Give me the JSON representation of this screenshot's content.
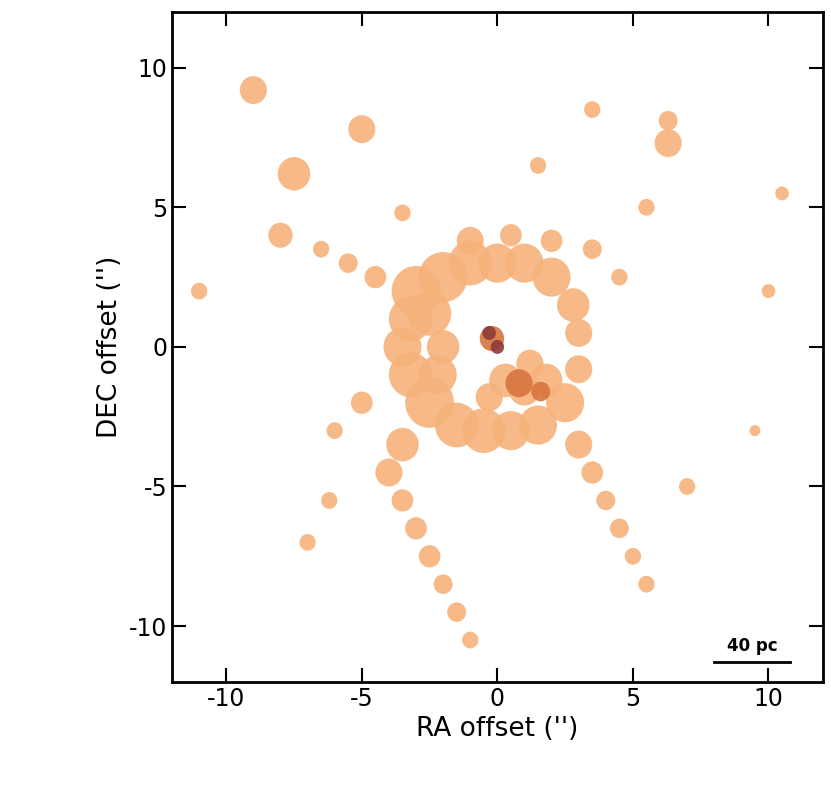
{
  "chart_data": {
    "type": "image",
    "xlabel": "RA offset ('')",
    "ylabel": "DEC offset ('')",
    "xlim": [
      -12,
      12
    ],
    "ylim": [
      -12,
      12
    ],
    "xticks": [
      -10,
      -5,
      0,
      5,
      10
    ],
    "yticks": [
      -10,
      -5,
      0,
      5,
      10
    ],
    "scale_bar": {
      "label": "40 pc",
      "length": 2.8
    },
    "series": [
      {
        "color": "#f5b27a",
        "clumps": [
          [
            -3,
            2,
            0.9
          ],
          [
            -2,
            2.5,
            0.9
          ],
          [
            -1,
            3,
            0.8
          ],
          [
            0,
            3,
            0.7
          ],
          [
            1,
            3,
            0.7
          ],
          [
            2,
            2.5,
            0.7
          ],
          [
            2.8,
            1.5,
            0.6
          ],
          [
            3,
            0.5,
            0.5
          ],
          [
            3,
            -0.8,
            0.5
          ],
          [
            2.5,
            -2,
            0.7
          ],
          [
            1.5,
            -2.8,
            0.7
          ],
          [
            0.5,
            -3,
            0.7
          ],
          [
            -0.5,
            -3,
            0.8
          ],
          [
            -1.5,
            -2.8,
            0.8
          ],
          [
            -2.5,
            -2,
            0.9
          ],
          [
            -3.2,
            -1,
            0.8
          ],
          [
            -3.5,
            0,
            0.7
          ],
          [
            -3.2,
            1,
            0.8
          ],
          [
            -2.5,
            1.2,
            0.8
          ],
          [
            -2,
            0,
            0.6
          ],
          [
            -2.2,
            -1,
            0.7
          ],
          [
            0.3,
            -1.2,
            0.6
          ],
          [
            1,
            -1.5,
            0.6
          ],
          [
            1.8,
            -1.2,
            0.6
          ],
          [
            1.2,
            -0.6,
            0.5
          ],
          [
            -0.3,
            -1.8,
            0.5
          ],
          [
            -3.5,
            -3.5,
            0.6
          ],
          [
            -4,
            -4.5,
            0.5
          ],
          [
            -3.5,
            -5.5,
            0.4
          ],
          [
            -3,
            -6.5,
            0.4
          ],
          [
            -2.5,
            -7.5,
            0.4
          ],
          [
            -2,
            -8.5,
            0.35
          ],
          [
            -1.5,
            -9.5,
            0.35
          ],
          [
            -1,
            -10.5,
            0.3
          ],
          [
            3,
            -3.5,
            0.5
          ],
          [
            3.5,
            -4.5,
            0.4
          ],
          [
            4,
            -5.5,
            0.35
          ],
          [
            4.5,
            -6.5,
            0.35
          ],
          [
            5,
            -7.5,
            0.3
          ],
          [
            5.5,
            -8.5,
            0.3
          ],
          [
            -1,
            3.8,
            0.5
          ],
          [
            0.5,
            4,
            0.4
          ],
          [
            2,
            3.8,
            0.4
          ],
          [
            3.5,
            3.5,
            0.35
          ],
          [
            4.5,
            2.5,
            0.3
          ],
          [
            -4.5,
            2.5,
            0.4
          ],
          [
            -5.5,
            3,
            0.35
          ],
          [
            -6.5,
            3.5,
            0.3
          ],
          [
            -5,
            -2,
            0.4
          ],
          [
            -6,
            -3,
            0.3
          ],
          [
            -6.2,
            -5.5,
            0.3
          ],
          [
            -9,
            9.2,
            0.5
          ],
          [
            -5,
            7.8,
            0.5
          ],
          [
            -7.5,
            6.2,
            0.6
          ],
          [
            -8,
            4,
            0.45
          ],
          [
            6.3,
            7.3,
            0.5
          ],
          [
            6.3,
            8.1,
            0.35
          ],
          [
            -11,
            2,
            0.3
          ],
          [
            5.5,
            5,
            0.3
          ],
          [
            3.5,
            8.5,
            0.3
          ],
          [
            1.5,
            6.5,
            0.3
          ],
          [
            10,
            2,
            0.25
          ],
          [
            10.5,
            5.5,
            0.25
          ],
          [
            -3.5,
            4.8,
            0.3
          ],
          [
            -7,
            -7,
            0.3
          ],
          [
            7,
            -5,
            0.3
          ],
          [
            9.5,
            -3,
            0.2
          ]
        ]
      },
      {
        "color": "#d8743f",
        "clumps": [
          [
            0.8,
            -1.3,
            0.5
          ],
          [
            1.6,
            -1.6,
            0.35
          ],
          [
            -0.2,
            0.3,
            0.45
          ]
        ]
      },
      {
        "color": "#8e3b3a",
        "clumps": [
          [
            0,
            0,
            0.25
          ],
          [
            -0.3,
            0.5,
            0.25
          ]
        ]
      }
    ]
  }
}
